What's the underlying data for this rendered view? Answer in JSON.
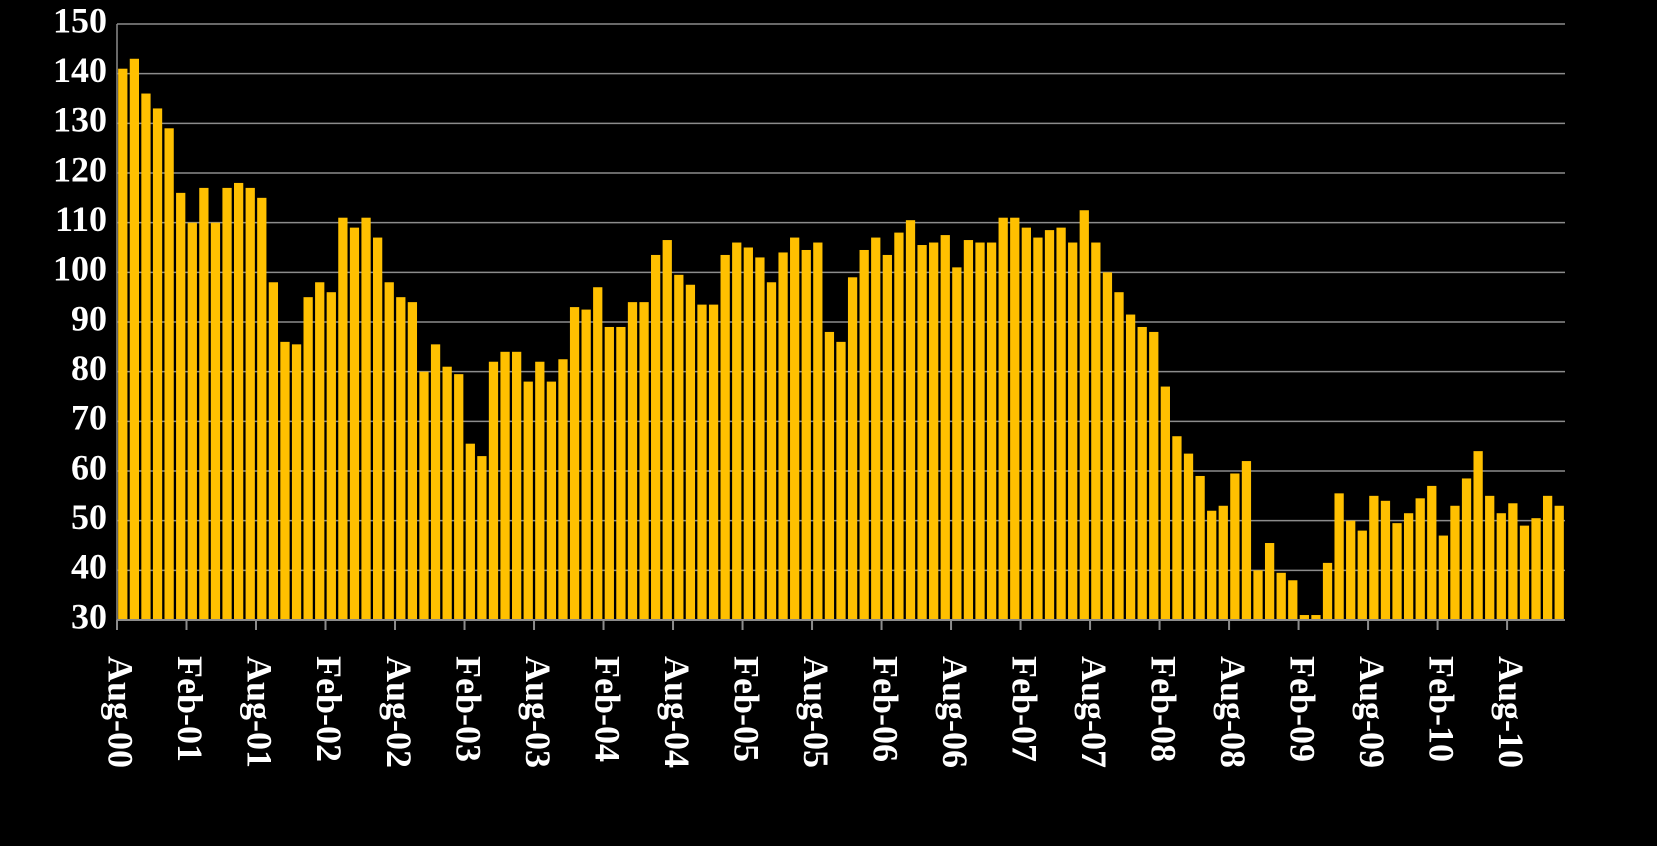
{
  "chart_data": {
    "type": "bar",
    "categories": [
      "Aug-00",
      null,
      null,
      null,
      null,
      null,
      "Feb-01",
      null,
      null,
      null,
      null,
      null,
      "Aug-01",
      null,
      null,
      null,
      null,
      null,
      "Feb-02",
      null,
      null,
      null,
      null,
      null,
      "Aug-02",
      null,
      null,
      null,
      null,
      null,
      "Feb-03",
      null,
      null,
      null,
      null,
      null,
      "Aug-03",
      null,
      null,
      null,
      null,
      null,
      "Feb-04",
      null,
      null,
      null,
      null,
      null,
      "Aug-04",
      null,
      null,
      null,
      null,
      null,
      "Feb-05",
      null,
      null,
      null,
      null,
      null,
      "Aug-05",
      null,
      null,
      null,
      null,
      null,
      "Feb-06",
      null,
      null,
      null,
      null,
      null,
      "Aug-06",
      null,
      null,
      null,
      null,
      null,
      "Feb-07",
      null,
      null,
      null,
      null,
      null,
      "Aug-07",
      null,
      null,
      null,
      null,
      null,
      "Feb-08",
      null,
      null,
      null,
      null,
      null,
      "Aug-08",
      null,
      null,
      null,
      null,
      null,
      "Feb-09",
      null,
      null,
      null,
      null,
      null,
      "Aug-09",
      null,
      null,
      null,
      null,
      null,
      "Feb-10",
      null,
      null,
      null,
      null,
      null,
      "Aug-10",
      null,
      null,
      null,
      null
    ],
    "values": [
      141,
      143,
      136,
      133,
      129,
      116,
      110,
      117,
      110,
      117,
      118,
      117,
      115,
      98,
      86,
      85.5,
      95,
      98,
      96,
      111,
      109,
      111,
      107,
      98,
      95,
      94,
      80,
      85.5,
      81,
      79.5,
      65.5,
      63,
      82,
      84,
      84,
      78,
      82,
      78,
      82.5,
      93,
      92.5,
      97,
      89,
      89,
      94,
      94,
      103.5,
      106.5,
      99.5,
      97.5,
      93.5,
      93.5,
      103.5,
      106,
      105,
      103,
      98,
      104,
      107,
      104.5,
      106,
      88,
      86,
      99,
      104.5,
      107,
      103.5,
      108,
      110.5,
      105.5,
      106,
      107.5,
      101,
      106.5,
      106,
      106,
      111,
      111,
      109,
      107,
      108.5,
      109,
      106,
      112.5,
      106,
      100,
      96,
      91.5,
      89,
      88,
      77,
      67,
      63.5,
      59,
      52,
      53,
      59.5,
      62,
      40,
      45.5,
      39.5,
      38,
      31,
      31,
      41.5,
      55.5,
      50,
      48,
      55,
      54,
      49.5,
      51.5,
      54.5,
      57,
      47,
      53,
      58.5,
      64,
      55,
      51.5,
      53.5,
      49,
      50.5,
      55,
      53
    ],
    "color": "#ffc000",
    "ylim": [
      30,
      150
    ],
    "yticks": [
      30,
      40,
      50,
      60,
      70,
      80,
      90,
      100,
      110,
      120,
      130,
      140,
      150
    ],
    "grid": true
  }
}
